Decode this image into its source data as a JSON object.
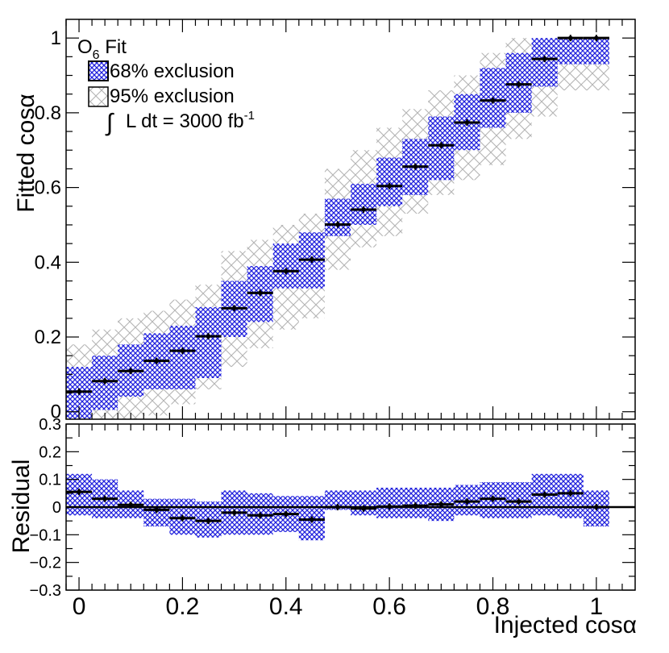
{
  "chart_data": [
    {
      "type": "scatter",
      "panel": "main",
      "ylabel": "Fitted cosα",
      "ylim": [
        -0.02,
        1.05
      ],
      "yticks": [
        0,
        0.2,
        0.4,
        0.6,
        0.8,
        1
      ],
      "ytick_labels": [
        "0",
        "0.2",
        "0.4",
        "0.6",
        "0.8",
        "1"
      ],
      "legend": {
        "title_main": "O",
        "title_sub": "6",
        "title_rest": " Fit",
        "items": [
          "68% exclusion",
          "95% exclusion"
        ],
        "lumi_text": "L dt = 3000 fb",
        "lumi_sup": "-1",
        "integral_symbol": "∫"
      },
      "x": [
        0,
        0.05,
        0.1,
        0.15,
        0.2,
        0.25,
        0.3,
        0.35,
        0.4,
        0.45,
        0.5,
        0.55,
        0.6,
        0.65,
        0.7,
        0.75,
        0.8,
        0.85,
        0.9,
        0.95,
        1.0
      ],
      "fitted": [
        0.054,
        0.082,
        0.109,
        0.136,
        0.163,
        0.202,
        0.277,
        0.318,
        0.376,
        0.407,
        0.501,
        0.541,
        0.604,
        0.656,
        0.713,
        0.774,
        0.833,
        0.876,
        0.944,
        1.0,
        1.0
      ],
      "band68_low": [
        -0.02,
        0.005,
        0.04,
        0.06,
        0.06,
        0.09,
        0.2,
        0.24,
        0.33,
        0.33,
        0.47,
        0.5,
        0.55,
        0.58,
        0.62,
        0.7,
        0.76,
        0.8,
        0.87,
        0.93,
        0.93
      ],
      "band68_high": [
        0.12,
        0.15,
        0.18,
        0.21,
        0.23,
        0.28,
        0.35,
        0.39,
        0.45,
        0.48,
        0.57,
        0.61,
        0.68,
        0.73,
        0.79,
        0.85,
        0.92,
        0.96,
        1.0,
        1.0,
        1.0
      ],
      "band95_low": [
        -0.02,
        -0.02,
        -0.02,
        -0.01,
        0.02,
        0.06,
        0.12,
        0.17,
        0.22,
        0.25,
        0.38,
        0.44,
        0.47,
        0.53,
        0.58,
        0.62,
        0.66,
        0.73,
        0.79,
        0.86,
        0.86
      ],
      "band95_high": [
        0.18,
        0.22,
        0.25,
        0.27,
        0.3,
        0.34,
        0.43,
        0.46,
        0.5,
        0.53,
        0.65,
        0.7,
        0.76,
        0.81,
        0.86,
        0.9,
        0.96,
        1.0,
        1.0,
        1.0,
        1.0
      ]
    },
    {
      "type": "scatter",
      "panel": "residual",
      "xlabel": "Injected cosα",
      "ylabel": "Residual",
      "xlim": [
        -0.025,
        1.075
      ],
      "ylim": [
        -0.3,
        0.3
      ],
      "xticks": [
        0,
        0.2,
        0.4,
        0.6,
        0.8,
        1
      ],
      "xtick_labels": [
        "0",
        "0.2",
        "0.4",
        "0.6",
        "0.8",
        "1"
      ],
      "yticks": [
        -0.3,
        -0.2,
        -0.1,
        0,
        0.1,
        0.2,
        0.3
      ],
      "ytick_labels": [
        "−0.3",
        "−0.2",
        "−0.1",
        "0",
        "0.1",
        "0.2",
        "0.3"
      ],
      "x": [
        0,
        0.05,
        0.1,
        0.15,
        0.2,
        0.25,
        0.3,
        0.35,
        0.4,
        0.45,
        0.5,
        0.55,
        0.6,
        0.65,
        0.7,
        0.75,
        0.8,
        0.85,
        0.9,
        0.95,
        1.0
      ],
      "residual": [
        0.055,
        0.03,
        0.008,
        -0.01,
        -0.04,
        -0.05,
        -0.02,
        -0.03,
        -0.025,
        -0.045,
        0.0,
        -0.005,
        0.002,
        0.005,
        0.01,
        0.02,
        0.03,
        0.02,
        0.045,
        0.05,
        0.0
      ],
      "band_low": [
        -0.03,
        -0.04,
        -0.04,
        -0.07,
        -0.1,
        -0.11,
        -0.1,
        -0.1,
        -0.09,
        -0.12,
        -0.01,
        -0.03,
        -0.04,
        -0.04,
        -0.05,
        -0.03,
        -0.04,
        -0.04,
        -0.03,
        -0.04,
        -0.07
      ],
      "band_high": [
        0.12,
        0.1,
        0.06,
        0.03,
        0.03,
        0.02,
        0.06,
        0.05,
        0.04,
        0.04,
        0.06,
        0.06,
        0.07,
        0.07,
        0.07,
        0.08,
        0.09,
        0.09,
        0.12,
        0.12,
        0.06
      ]
    }
  ]
}
